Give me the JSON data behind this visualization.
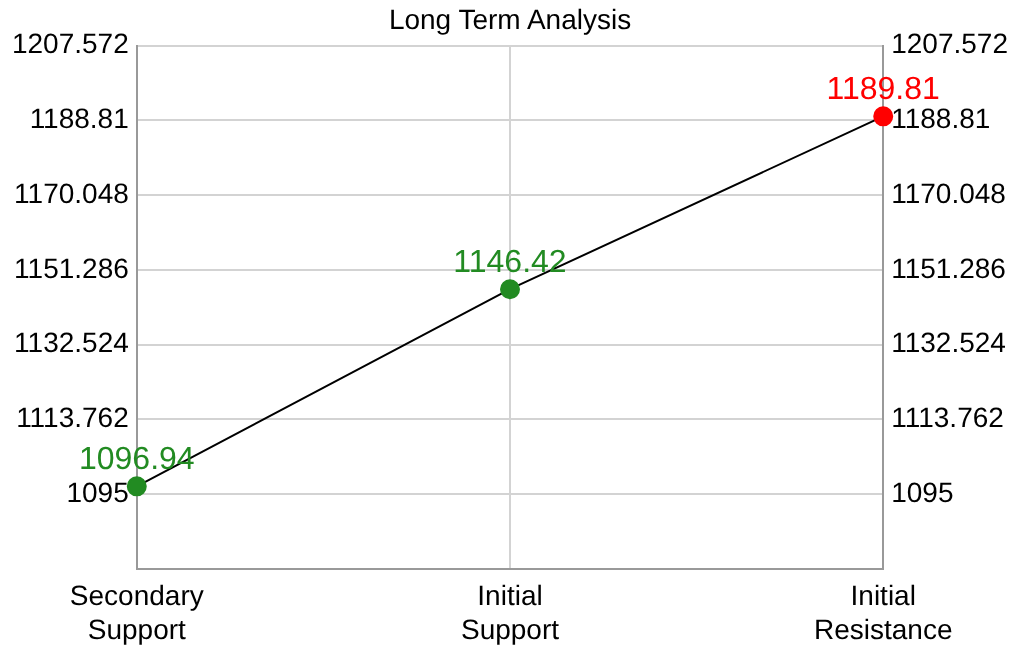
{
  "chart_data": {
    "type": "line",
    "title": "Long Term Analysis",
    "categories": [
      "Secondary Support",
      "Initial Support",
      "Initial Resistance"
    ],
    "series": [
      {
        "color": "#000000",
        "colors": [
          "#228b22",
          "#228b22",
          "#ff0000"
        ],
        "values": [
          1096.94,
          1146.42,
          1189.81
        ]
      }
    ],
    "ylim": [
      1076.238,
      1207.572
    ],
    "yticks": [
      1095,
      1113.762,
      1132.524,
      1151.286,
      1170.048,
      1188.81,
      1207.572
    ],
    "y2lim": [
      1076.238,
      1207.572
    ],
    "y2ticks": [
      1095,
      1113.762,
      1132.524,
      1151.286,
      1170.048,
      1188.81,
      1207.572
    ],
    "grid": true,
    "legend": false,
    "marker": "circle",
    "line_style": "solid",
    "data_labels": true
  }
}
